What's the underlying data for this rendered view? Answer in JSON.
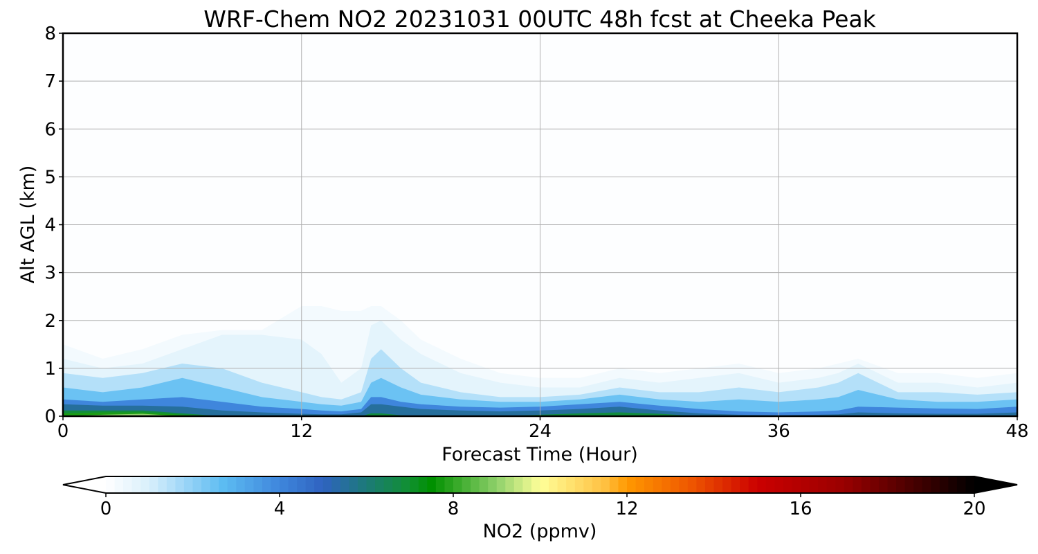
{
  "chart_data": {
    "type": "heatmap",
    "title": "WRF-Chem NO2  20231031 00UTC 48h fcst at Cheeka Peak",
    "xlabel": "Forecast Time (Hour)",
    "ylabel": "Alt AGL (km)",
    "xlim": [
      0,
      48
    ],
    "ylim": [
      0,
      8
    ],
    "x_ticks": [
      "0",
      "12",
      "24",
      "36",
      "48"
    ],
    "y_ticks": [
      "0",
      "1",
      "2",
      "3",
      "4",
      "5",
      "6",
      "7",
      "8"
    ],
    "grid": true,
    "colorbar": {
      "label": "NO2  (ppmv)",
      "range": [
        0,
        20
      ],
      "ticks": [
        "0",
        "4",
        "8",
        "12",
        "16",
        "20"
      ],
      "extend": "both",
      "stops": [
        {
          "v": 0,
          "c": "#ffffff"
        },
        {
          "v": 1,
          "c": "#d8effb"
        },
        {
          "v": 2,
          "c": "#8fd0f6"
        },
        {
          "v": 2.7,
          "c": "#5cbcf2"
        },
        {
          "v": 4,
          "c": "#3f86dc"
        },
        {
          "v": 5,
          "c": "#2f63c0"
        },
        {
          "v": 6,
          "c": "#1c7a78"
        },
        {
          "v": 7,
          "c": "#109030"
        },
        {
          "v": 7.5,
          "c": "#009000"
        },
        {
          "v": 9,
          "c": "#8ed06a"
        },
        {
          "v": 10,
          "c": "#ffff99"
        },
        {
          "v": 11.5,
          "c": "#ffc040"
        },
        {
          "v": 12,
          "c": "#ff9900"
        },
        {
          "v": 13.5,
          "c": "#ee5500"
        },
        {
          "v": 15,
          "c": "#cc0000"
        },
        {
          "v": 17,
          "c": "#990000"
        },
        {
          "v": 19,
          "c": "#330000"
        },
        {
          "v": 20,
          "c": "#000000"
        }
      ]
    },
    "background_value": 0.05,
    "series": [
      {
        "hours": [
          0,
          2,
          4,
          6,
          8,
          10,
          12,
          13,
          14,
          15,
          15.5,
          16,
          17,
          18,
          20,
          22,
          24,
          26,
          28,
          30,
          32,
          34,
          36,
          38,
          39,
          40,
          42,
          44,
          46,
          48
        ],
        "levels": [
          {
            "value": 0.3,
            "alt_km": [
              1.5,
              1.2,
              1.4,
              1.7,
              1.8,
              1.8,
              2.3,
              2.3,
              2.2,
              2.2,
              2.3,
              2.3,
              2.0,
              1.6,
              1.2,
              0.9,
              0.8,
              0.8,
              1.0,
              0.9,
              1.0,
              1.1,
              0.9,
              1.0,
              1.1,
              1.2,
              0.9,
              0.9,
              0.8,
              0.9
            ]
          },
          {
            "value": 0.7,
            "alt_km": [
              1.2,
              1.0,
              1.1,
              1.4,
              1.7,
              1.7,
              1.6,
              1.3,
              0.7,
              1.0,
              1.9,
              2.0,
              1.6,
              1.3,
              0.9,
              0.7,
              0.6,
              0.6,
              0.8,
              0.7,
              0.8,
              0.9,
              0.7,
              0.8,
              0.9,
              1.1,
              0.7,
              0.7,
              0.6,
              0.7
            ]
          },
          {
            "value": 1.5,
            "alt_km": [
              0.9,
              0.8,
              0.9,
              1.1,
              1.0,
              0.7,
              0.5,
              0.4,
              0.35,
              0.5,
              1.2,
              1.4,
              1.0,
              0.7,
              0.5,
              0.4,
              0.4,
              0.45,
              0.6,
              0.5,
              0.5,
              0.6,
              0.5,
              0.6,
              0.7,
              0.9,
              0.5,
              0.5,
              0.45,
              0.5
            ]
          },
          {
            "value": 2.5,
            "alt_km": [
              0.6,
              0.5,
              0.6,
              0.8,
              0.6,
              0.4,
              0.3,
              0.25,
              0.22,
              0.3,
              0.7,
              0.8,
              0.6,
              0.45,
              0.35,
              0.3,
              0.3,
              0.35,
              0.45,
              0.35,
              0.3,
              0.35,
              0.3,
              0.35,
              0.4,
              0.55,
              0.35,
              0.3,
              0.3,
              0.35
            ]
          },
          {
            "value": 4.0,
            "alt_km": [
              0.35,
              0.3,
              0.35,
              0.4,
              0.3,
              0.2,
              0.15,
              0.12,
              0.1,
              0.15,
              0.4,
              0.4,
              0.3,
              0.25,
              0.2,
              0.18,
              0.2,
              0.25,
              0.3,
              0.22,
              0.15,
              0.1,
              0.08,
              0.1,
              0.12,
              0.2,
              0.18,
              0.16,
              0.15,
              0.2
            ]
          },
          {
            "value": 5.5,
            "alt_km": [
              0.25,
              0.22,
              0.22,
              0.2,
              0.12,
              0.08,
              0.05,
              0.04,
              0.04,
              0.08,
              0.25,
              0.25,
              0.2,
              0.15,
              0.12,
              0.1,
              0.12,
              0.15,
              0.2,
              0.12,
              0.06,
              0.03,
              0.02,
              0.03,
              0.04,
              0.08,
              0.06,
              0.05,
              0.05,
              0.08
            ]
          },
          {
            "value": 6.8,
            "alt_km": [
              0.12,
              0.12,
              0.12,
              0.06,
              0.0,
              0.0,
              0.0,
              0.0,
              0.0,
              0.0,
              0.06,
              0.06,
              0.02,
              0.0,
              0.0,
              0.0,
              0.03,
              0.06,
              0.08,
              0.05,
              0.0,
              0.0,
              0.0,
              0.0,
              0.0,
              0.0,
              0.0,
              0.0,
              0.0,
              0.0
            ]
          },
          {
            "value": 7.8,
            "alt_km": [
              0.06,
              0.08,
              0.08,
              0.03,
              0.0,
              0.0,
              0.0,
              0.0,
              0.0,
              0.0,
              0.0,
              0.0,
              0.0,
              0.0,
              0.0,
              0.0,
              0.0,
              0.0,
              0.0,
              0.0,
              0.0,
              0.0,
              0.0,
              0.0,
              0.0,
              0.0,
              0.0,
              0.0,
              0.0,
              0.0
            ]
          },
          {
            "value": 9.0,
            "alt_km": [
              0.0,
              0.03,
              0.05,
              0.0,
              0.0,
              0.0,
              0.0,
              0.0,
              0.0,
              0.0,
              0.0,
              0.0,
              0.0,
              0.0,
              0.0,
              0.0,
              0.0,
              0.0,
              0.0,
              0.0,
              0.0,
              0.0,
              0.0,
              0.0,
              0.0,
              0.0,
              0.0,
              0.0,
              0.0,
              0.0
            ]
          }
        ]
      }
    ]
  }
}
